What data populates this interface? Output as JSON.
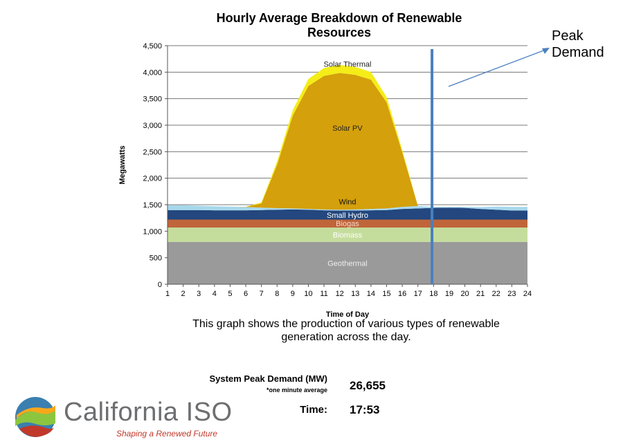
{
  "title_lines": [
    "Hourly Average Breakdown of Renewable",
    "Resources"
  ],
  "peak_demand_label": [
    "Peak",
    "Demand"
  ],
  "caption_lines": [
    "This graph shows the production of various types of renewable",
    "generation across the day."
  ],
  "stats": {
    "system_peak_demand_label": "System Peak Demand (MW)",
    "system_peak_demand_note": "*one minute average",
    "system_peak_demand_value": "26,655",
    "time_label": "Time:",
    "time_value": "17:53"
  },
  "logo": {
    "name": "California ISO",
    "tagline": "Shaping a Renewed Future"
  },
  "colors": {
    "geothermal": "#9a9a9a",
    "biomass": "#c5dd9c",
    "biogas": "#c0653a",
    "small_hydro": "#23477e",
    "wind": "#a7d8ec",
    "solar_pv": "#d4a00b",
    "solar_thermal": "#f4ed18",
    "peak_line": "#4a7fbe",
    "arrow": "#4a7fbe",
    "grid": "#777777"
  },
  "chart_data": {
    "type": "area",
    "stacked": true,
    "xlabel": "Time of Day",
    "ylabel": "Megawatts",
    "x": [
      1,
      2,
      3,
      4,
      5,
      6,
      7,
      8,
      9,
      10,
      11,
      12,
      13,
      14,
      15,
      16,
      17,
      18,
      19,
      20,
      21,
      22,
      23,
      24
    ],
    "ylim": [
      0,
      4500
    ],
    "yticks": [
      0,
      500,
      1000,
      1500,
      2000,
      2500,
      3000,
      3500,
      4000,
      4500
    ],
    "ytick_labels": [
      "0",
      "500",
      "1,000",
      "1,500",
      "2,000",
      "2,500",
      "3,000",
      "3,500",
      "4,000",
      "4,500"
    ],
    "grid": true,
    "series": [
      {
        "name": "Geothermal",
        "color_key": "geothermal",
        "values": [
          800,
          800,
          800,
          800,
          800,
          800,
          800,
          800,
          800,
          800,
          800,
          800,
          800,
          800,
          800,
          800,
          800,
          800,
          800,
          800,
          800,
          800,
          800,
          800
        ]
      },
      {
        "name": "Biomass",
        "color_key": "biomass",
        "values": [
          270,
          270,
          270,
          270,
          270,
          270,
          270,
          270,
          270,
          270,
          270,
          270,
          270,
          270,
          270,
          270,
          270,
          270,
          270,
          270,
          270,
          270,
          270,
          270
        ]
      },
      {
        "name": "Biogas",
        "color_key": "biogas",
        "values": [
          150,
          150,
          150,
          150,
          150,
          150,
          150,
          150,
          150,
          150,
          150,
          150,
          150,
          150,
          150,
          150,
          150,
          150,
          150,
          150,
          150,
          150,
          150,
          150
        ]
      },
      {
        "name": "Small Hydro",
        "color_key": "small_hydro",
        "values": [
          180,
          180,
          180,
          175,
          175,
          175,
          180,
          185,
          190,
          185,
          175,
          170,
          170,
          175,
          180,
          200,
          210,
          220,
          225,
          220,
          200,
          185,
          170,
          170
        ]
      },
      {
        "name": "Wind",
        "color_key": "wind",
        "values": [
          90,
          90,
          80,
          75,
          70,
          60,
          45,
          30,
          20,
          15,
          15,
          15,
          20,
          25,
          30,
          40,
          45,
          20,
          15,
          20,
          35,
          60,
          70,
          70
        ]
      },
      {
        "name": "Solar PV",
        "color_key": "solar_pv",
        "values": [
          0,
          0,
          0,
          0,
          0,
          5,
          80,
          820,
          1750,
          2320,
          2520,
          2580,
          2540,
          2440,
          2000,
          1030,
          0,
          0,
          0,
          0,
          0,
          0,
          0,
          0
        ]
      },
      {
        "name": "Solar Thermal",
        "color_key": "solar_thermal",
        "values": [
          0,
          0,
          0,
          0,
          0,
          0,
          20,
          60,
          100,
          130,
          150,
          150,
          150,
          140,
          100,
          40,
          0,
          0,
          0,
          0,
          0,
          0,
          0,
          0
        ]
      }
    ],
    "peak_demand_marker_x": 17.9,
    "series_label_positions_note": "labels drawn inside their areas"
  }
}
